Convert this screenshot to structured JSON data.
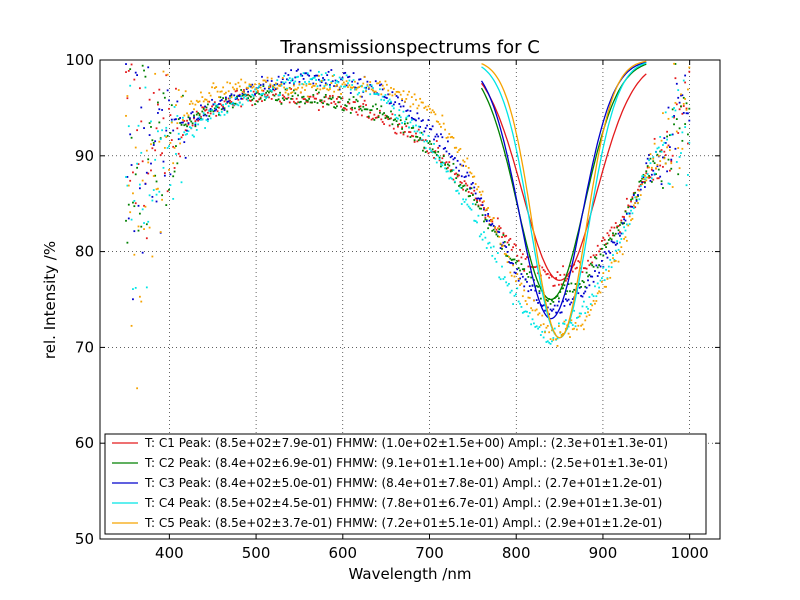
{
  "chart_data": {
    "type": "scatter",
    "title": "Transmissionspectrums for C",
    "xlabel": "Wavelength  /nm",
    "ylabel": "rel. Intensity  /%",
    "xlim": [
      320,
      1035
    ],
    "ylim": [
      50,
      100
    ],
    "xticks": [
      400,
      500,
      600,
      700,
      800,
      900,
      1000
    ],
    "yticks": [
      50,
      60,
      70,
      80,
      90,
      100
    ],
    "grid": true,
    "legend_position": "lower-left",
    "fit_range": [
      760,
      950
    ],
    "series": [
      {
        "name": "T: C1 Peak: (8.5e+02±7.9e-01)  FHMW: (1.0e+02±1.5e+00)  Ampl.: (2.3e+01±1.3e-01)",
        "color": "#e41a1c",
        "curve": {
          "x": [
            350,
            400,
            450,
            500,
            550,
            600,
            650,
            700,
            750,
            800,
            840,
            880,
            920,
            950,
            980,
            1000
          ],
          "y": [
            90,
            92,
            95,
            96.5,
            96,
            95.3,
            94,
            91,
            86,
            80,
            77.2,
            78.5,
            83,
            88,
            92,
            95
          ]
        },
        "fit": {
          "center": 850,
          "fwhm": 100,
          "amplitude": 23,
          "baseline": 100
        }
      },
      {
        "name": "T: C2 Peak: (8.4e+02±6.9e-01)  FHMW: (9.1e+01±1.1e+00)  Ampl.: (2.5e+01±1.3e-01)",
        "color": "#008000",
        "curve": {
          "x": [
            350,
            400,
            450,
            500,
            550,
            600,
            650,
            700,
            750,
            800,
            840,
            880,
            920,
            950,
            980,
            1000
          ],
          "y": [
            90,
            92,
            95,
            96.5,
            96,
            95.5,
            94.2,
            91,
            85.5,
            78.5,
            75,
            77,
            83,
            88,
            92,
            95
          ]
        },
        "fit": {
          "center": 840,
          "fwhm": 91,
          "amplitude": 25,
          "baseline": 100
        }
      },
      {
        "name": "T: C3 Peak: (8.4e+02±5.0e-01)  FHMW: (8.4e+01±7.8e-01)  Ampl.: (2.7e+01±1.2e-01)",
        "color": "#0000cc",
        "curve": {
          "x": [
            350,
            400,
            450,
            500,
            550,
            600,
            650,
            700,
            750,
            800,
            840,
            880,
            920,
            950,
            980,
            1000
          ],
          "y": [
            88,
            92,
            95,
            97,
            98.5,
            98,
            96.5,
            93,
            87,
            78,
            73.5,
            76,
            82,
            88,
            92,
            95
          ]
        },
        "fit": {
          "center": 840,
          "fwhm": 84,
          "amplitude": 27,
          "baseline": 100
        }
      },
      {
        "name": "T: C4 Peak: (8.5e+02±4.5e-01)  FHMW: (7.8e+01±6.7e-01)  Ampl.: (2.9e+01±1.3e-01)",
        "color": "#00e5e5",
        "curve": {
          "x": [
            350,
            400,
            450,
            500,
            550,
            600,
            650,
            700,
            750,
            800,
            840,
            880,
            920,
            950,
            980,
            1000
          ],
          "y": [
            85,
            91,
            94.5,
            96.5,
            98,
            98,
            96,
            91,
            84,
            75,
            70.5,
            74,
            81,
            88,
            92,
            95
          ]
        },
        "fit": {
          "center": 850,
          "fwhm": 78,
          "amplitude": 29,
          "baseline": 100
        }
      },
      {
        "name": "T: C5 Peak: (8.5e+02±3.7e-01)  FHMW: (7.2e+01±5.1e-01)  Ampl.: (2.9e+01±1.2e-01)",
        "color": "#f5a300",
        "curve": {
          "x": [
            350,
            400,
            450,
            500,
            550,
            600,
            650,
            700,
            750,
            800,
            840,
            880,
            920,
            950,
            980,
            1000
          ],
          "y": [
            86,
            93,
            97,
            97.5,
            97,
            97.5,
            97,
            95,
            88,
            77,
            71,
            73,
            80,
            88,
            92,
            95
          ]
        },
        "fit": {
          "center": 850,
          "fwhm": 72,
          "amplitude": 29,
          "baseline": 100
        }
      }
    ]
  }
}
